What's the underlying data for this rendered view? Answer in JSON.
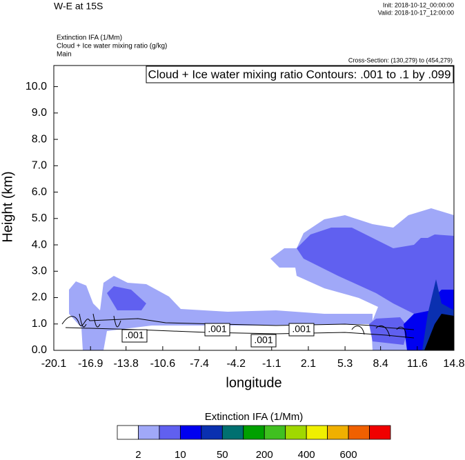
{
  "chart_data": {
    "type": "contour",
    "title": "W-E at 15S",
    "init": "Init: 2018-10-12_00:00:00",
    "valid": "Valid: 2018-10-17_12:00:00",
    "fields": [
      "Extinction IFA   (1/Mm)",
      "Cloud + Ice water mixing ratio   (g/kg)",
      "Main"
    ],
    "cross_section": "Cross-Section: (130,279) to (454,279)",
    "contour_info": "Cloud + Ice water mixing ratio Contours: .001 to .1 by .099",
    "xlabel": "longitude",
    "ylabel": "Height (km)",
    "xlim": [
      -20.1,
      14.8
    ],
    "xticks": [
      -20.1,
      -16.9,
      -13.8,
      -10.6,
      -7.4,
      -4.2,
      -1.1,
      2.1,
      5.3,
      8.4,
      11.6,
      14.8
    ],
    "ylim": [
      0,
      10.8
    ],
    "yticks": [
      {
        "value": 0,
        "label": "0.0"
      },
      {
        "value": 1,
        "label": "1.0"
      },
      {
        "value": 2,
        "label": "2.0"
      },
      {
        "value": 3,
        "label": "3.0"
      },
      {
        "value": 4,
        "label": "4.0"
      },
      {
        "value": 5,
        "label": "5.0"
      },
      {
        "value": 6,
        "label": "6.0"
      },
      {
        "value": 7,
        "label": "7.0"
      },
      {
        "value": 8,
        "label": "8.0"
      },
      {
        "value": 9,
        "label": "9.0"
      },
      {
        "value": 10,
        "label": "10.0"
      }
    ],
    "contour_labels": [
      ".001",
      ".001",
      ".001",
      ".001"
    ],
    "colorbar": {
      "title": "Extinction IFA  (1/Mm)",
      "colors": [
        "#ffffff",
        "#a0a8f8",
        "#6060f0",
        "#0000f0",
        "#0a30b0",
        "#007070",
        "#00a000",
        "#40c020",
        "#a0d800",
        "#f0f000",
        "#f0b000",
        "#f06000",
        "#f00000"
      ],
      "ticks": [
        2,
        10,
        50,
        200,
        400,
        600
      ]
    }
  }
}
